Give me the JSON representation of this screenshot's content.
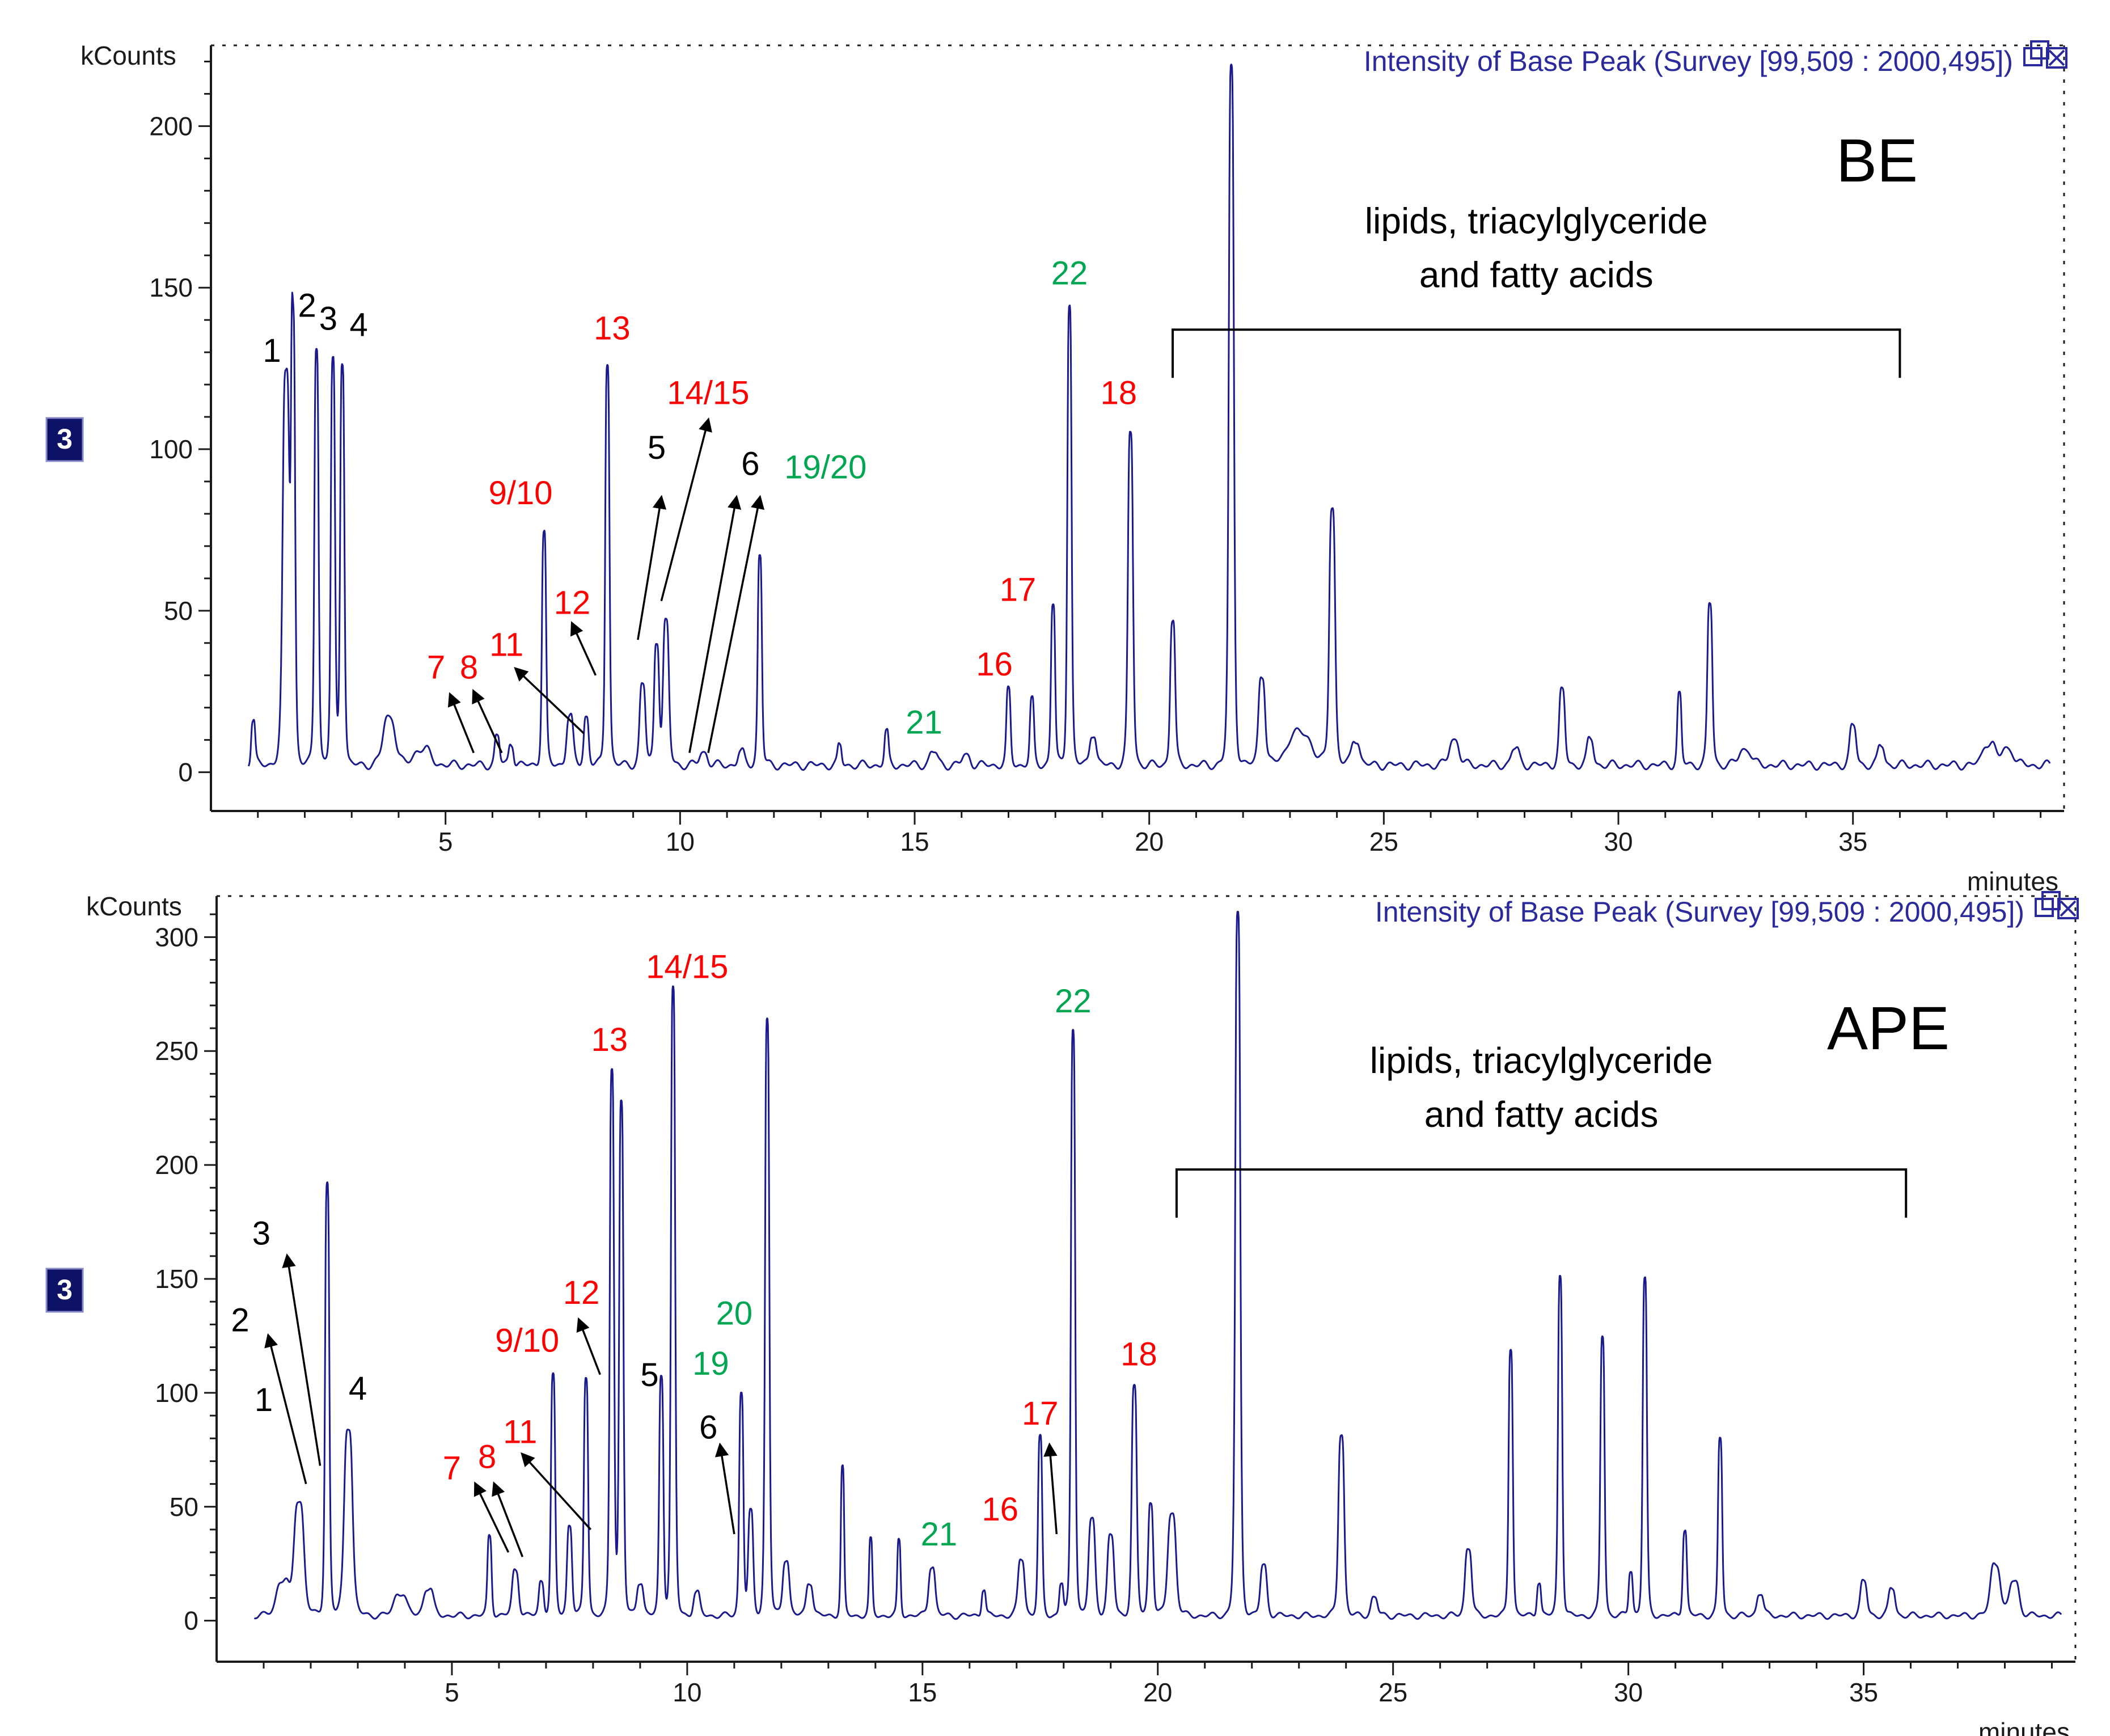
{
  "colors": {
    "trace": "#1a1a8c",
    "axis": "#1a1a1a",
    "header": "#2a2a9c",
    "red": "#ff0000",
    "green": "#00a651",
    "black": "#000000",
    "badge_bg": "#0d1266"
  },
  "chart_data": [
    {
      "type": "line",
      "panel": "BE",
      "title": "Intensity of Base Peak (Survey [99,509 : 2000,495])",
      "ylabel": "kCounts",
      "xlabel": "minutes",
      "badge": "3",
      "sample_label": "BE",
      "xlim": [
        0,
        39.5
      ],
      "ylim": [
        -12,
        225
      ],
      "xticks": [
        5,
        10,
        15,
        20,
        25,
        30,
        35
      ],
      "xtick_labels": [
        "5",
        "10",
        "15",
        "20",
        "25",
        "30",
        "35"
      ],
      "yticks": [
        0,
        50,
        100,
        150,
        200
      ],
      "ytick_labels": [
        "0",
        "50",
        "100",
        "150",
        "200"
      ],
      "baseline": 1,
      "range": [
        0.8,
        39.2
      ],
      "peaks": [
        [
          0.9,
          14,
          0.05
        ],
        [
          1.6,
          120,
          0.08
        ],
        [
          1.75,
          135,
          0.05
        ],
        [
          2.25,
          130,
          0.05
        ],
        [
          2.6,
          125,
          0.05
        ],
        [
          2.8,
          125,
          0.05
        ],
        [
          3.8,
          15,
          0.15
        ],
        [
          4.5,
          5,
          0.2
        ],
        [
          6.1,
          9,
          0.06
        ],
        [
          6.4,
          7,
          0.06
        ],
        [
          7.1,
          72,
          0.05
        ],
        [
          7.65,
          15,
          0.08
        ],
        [
          8.0,
          15,
          0.06
        ],
        [
          8.45,
          125,
          0.05
        ],
        [
          9.2,
          25,
          0.07
        ],
        [
          9.5,
          38,
          0.06
        ],
        [
          9.7,
          44,
          0.07
        ],
        [
          10.5,
          4,
          0.1
        ],
        [
          11.3,
          4,
          0.08
        ],
        [
          11.7,
          65,
          0.05
        ],
        [
          13.4,
          6,
          0.05
        ],
        [
          14.4,
          10,
          0.05
        ],
        [
          15.4,
          4,
          0.1
        ],
        [
          16.1,
          3,
          0.1
        ],
        [
          17.0,
          23,
          0.05
        ],
        [
          17.5,
          20,
          0.05
        ],
        [
          17.95,
          50,
          0.05
        ],
        [
          18.3,
          143,
          0.05
        ],
        [
          18.8,
          10,
          0.08
        ],
        [
          19.6,
          103,
          0.06
        ],
        [
          20.5,
          45,
          0.06
        ],
        [
          21.75,
          216,
          0.06
        ],
        [
          22.4,
          28,
          0.08
        ],
        [
          23.2,
          10,
          0.3
        ],
        [
          23.9,
          80,
          0.07
        ],
        [
          24.4,
          8,
          0.1
        ],
        [
          26.5,
          8,
          0.12
        ],
        [
          27.8,
          5,
          0.1
        ],
        [
          28.8,
          23,
          0.07
        ],
        [
          29.4,
          8,
          0.08
        ],
        [
          31.3,
          22,
          0.05
        ],
        [
          31.95,
          50,
          0.06
        ],
        [
          32.7,
          5,
          0.15
        ],
        [
          35.0,
          12,
          0.08
        ],
        [
          35.6,
          6,
          0.08
        ],
        [
          37.9,
          7,
          0.15
        ],
        [
          38.3,
          5,
          0.15
        ]
      ],
      "annotations": [
        {
          "text": "1",
          "x": 1.3,
          "y": 127,
          "color": "black"
        },
        {
          "text": "2",
          "x": 2.05,
          "y": 141,
          "color": "black"
        },
        {
          "text": "3",
          "x": 2.5,
          "y": 137,
          "color": "black"
        },
        {
          "text": "4",
          "x": 3.15,
          "y": 135,
          "color": "black"
        },
        {
          "text": "7",
          "x": 4.8,
          "y": 29,
          "color": "red"
        },
        {
          "text": "8",
          "x": 5.5,
          "y": 29,
          "color": "red"
        },
        {
          "text": "11",
          "x": 6.3,
          "y": 36,
          "color": "red"
        },
        {
          "text": "9/10",
          "x": 6.6,
          "y": 83,
          "color": "red"
        },
        {
          "text": "12",
          "x": 7.7,
          "y": 49,
          "color": "red"
        },
        {
          "text": "13",
          "x": 8.55,
          "y": 134,
          "color": "red"
        },
        {
          "text": "5",
          "x": 9.5,
          "y": 97,
          "color": "black"
        },
        {
          "text": "14/15",
          "x": 10.6,
          "y": 114,
          "color": "red"
        },
        {
          "text": "6",
          "x": 11.5,
          "y": 92,
          "color": "black"
        },
        {
          "text": "19/20",
          "x": 13.1,
          "y": 91,
          "color": "green"
        },
        {
          "text": "21",
          "x": 15.2,
          "y": 12,
          "color": "green"
        },
        {
          "text": "17",
          "x": 17.2,
          "y": 53,
          "color": "red"
        },
        {
          "text": "16",
          "x": 16.7,
          "y": 30,
          "color": "red"
        },
        {
          "text": "22",
          "x": 18.3,
          "y": 151,
          "color": "green"
        },
        {
          "text": "18",
          "x": 19.35,
          "y": 114,
          "color": "red"
        }
      ],
      "arrows": [
        {
          "from": [
            5.6,
            6
          ],
          "to": [
            5.1,
            24
          ]
        },
        {
          "from": [
            6.2,
            6
          ],
          "to": [
            5.6,
            25
          ]
        },
        {
          "from": [
            7.95,
            12
          ],
          "to": [
            6.5,
            32
          ]
        },
        {
          "from": [
            8.2,
            30
          ],
          "to": [
            7.7,
            46
          ]
        },
        {
          "from": [
            9.1,
            41
          ],
          "to": [
            9.6,
            85
          ]
        },
        {
          "from": [
            9.6,
            53
          ],
          "to": [
            10.6,
            109
          ]
        },
        {
          "from": [
            10.2,
            6
          ],
          "to": [
            11.2,
            85
          ]
        },
        {
          "from": [
            10.6,
            6
          ],
          "to": [
            11.7,
            85
          ]
        }
      ],
      "bracket": {
        "x1": 20.5,
        "x2": 36.0,
        "y": 137,
        "text_lines": [
          "lipids, triacylglyceride",
          "and fatty acids"
        ]
      }
    },
    {
      "type": "line",
      "panel": "APE",
      "title": "Intensity of Base Peak (Survey [99,509 : 2000,495])",
      "ylabel": "kCounts",
      "xlabel": "minutes",
      "badge": "3",
      "sample_label": "APE",
      "xlim": [
        0,
        39.5
      ],
      "ylim": [
        -18,
        318
      ],
      "xticks": [
        5,
        10,
        15,
        20,
        25,
        30,
        35
      ],
      "xtick_labels": [
        "5",
        "10",
        "15",
        "20",
        "25",
        "30",
        "35"
      ],
      "yticks": [
        0,
        50,
        100,
        150,
        200,
        250,
        300
      ],
      "ytick_labels": [
        "0",
        "50",
        "100",
        "150",
        "200",
        "250",
        "300"
      ],
      "baseline": 1,
      "range": [
        0.8,
        39.2
      ],
      "peaks": [
        [
          1.4,
          15,
          0.15
        ],
        [
          1.75,
          50,
          0.12
        ],
        [
          2.35,
          190,
          0.05
        ],
        [
          2.8,
          83,
          0.1
        ],
        [
          3.9,
          10,
          0.15
        ],
        [
          4.5,
          12,
          0.12
        ],
        [
          5.8,
          35,
          0.05
        ],
        [
          6.35,
          20,
          0.08
        ],
        [
          6.9,
          15,
          0.06
        ],
        [
          7.15,
          105,
          0.05
        ],
        [
          7.5,
          40,
          0.06
        ],
        [
          7.85,
          105,
          0.05
        ],
        [
          8.4,
          240,
          0.05
        ],
        [
          8.6,
          225,
          0.05
        ],
        [
          9.0,
          15,
          0.08
        ],
        [
          9.45,
          105,
          0.05
        ],
        [
          9.7,
          275,
          0.05
        ],
        [
          10.2,
          10,
          0.08
        ],
        [
          11.15,
          98,
          0.05
        ],
        [
          11.35,
          45,
          0.06
        ],
        [
          11.7,
          262,
          0.05
        ],
        [
          12.1,
          25,
          0.08
        ],
        [
          12.6,
          15,
          0.08
        ],
        [
          13.3,
          65,
          0.04
        ],
        [
          13.9,
          33,
          0.04
        ],
        [
          14.5,
          33,
          0.04
        ],
        [
          15.2,
          22,
          0.08
        ],
        [
          16.3,
          12,
          0.05
        ],
        [
          17.1,
          25,
          0.08
        ],
        [
          17.5,
          78,
          0.05
        ],
        [
          17.95,
          14,
          0.05
        ],
        [
          18.2,
          258,
          0.05
        ],
        [
          18.6,
          42,
          0.08
        ],
        [
          19.0,
          35,
          0.08
        ],
        [
          19.5,
          100,
          0.06
        ],
        [
          19.85,
          50,
          0.06
        ],
        [
          20.3,
          45,
          0.1
        ],
        [
          21.7,
          308,
          0.06
        ],
        [
          22.25,
          22,
          0.08
        ],
        [
          23.9,
          80,
          0.07
        ],
        [
          24.6,
          8,
          0.08
        ],
        [
          26.6,
          30,
          0.08
        ],
        [
          27.5,
          118,
          0.05
        ],
        [
          28.1,
          15,
          0.05
        ],
        [
          28.55,
          150,
          0.05
        ],
        [
          29.45,
          123,
          0.05
        ],
        [
          30.05,
          20,
          0.05
        ],
        [
          30.35,
          148,
          0.05
        ],
        [
          31.2,
          38,
          0.05
        ],
        [
          31.95,
          78,
          0.05
        ],
        [
          32.8,
          10,
          0.08
        ],
        [
          35.0,
          15,
          0.08
        ],
        [
          35.6,
          12,
          0.08
        ],
        [
          37.8,
          23,
          0.12
        ],
        [
          38.2,
          15,
          0.12
        ]
      ],
      "annotations": [
        {
          "text": "1",
          "x": 1.0,
          "y": 92,
          "color": "black"
        },
        {
          "text": "2",
          "x": 0.5,
          "y": 127,
          "color": "black"
        },
        {
          "text": "3",
          "x": 0.95,
          "y": 165,
          "color": "black"
        },
        {
          "text": "4",
          "x": 3.0,
          "y": 97,
          "color": "black"
        },
        {
          "text": "7",
          "x": 5.0,
          "y": 62,
          "color": "red"
        },
        {
          "text": "8",
          "x": 5.75,
          "y": 67,
          "color": "red"
        },
        {
          "text": "11",
          "x": 6.45,
          "y": 78,
          "color": "red"
        },
        {
          "text": "9/10",
          "x": 6.6,
          "y": 118,
          "color": "red"
        },
        {
          "text": "12",
          "x": 7.75,
          "y": 139,
          "color": "red"
        },
        {
          "text": "13",
          "x": 8.35,
          "y": 250,
          "color": "red"
        },
        {
          "text": "5",
          "x": 9.2,
          "y": 103,
          "color": "black"
        },
        {
          "text": "14/15",
          "x": 10.0,
          "y": 282,
          "color": "red"
        },
        {
          "text": "19",
          "x": 10.5,
          "y": 108,
          "color": "green"
        },
        {
          "text": "20",
          "x": 11.0,
          "y": 130,
          "color": "green"
        },
        {
          "text": "6",
          "x": 10.45,
          "y": 80,
          "color": "black"
        },
        {
          "text": "21",
          "x": 15.35,
          "y": 33,
          "color": "green"
        },
        {
          "text": "16",
          "x": 16.65,
          "y": 44,
          "color": "red"
        },
        {
          "text": "17",
          "x": 17.5,
          "y": 86,
          "color": "red"
        },
        {
          "text": "22",
          "x": 18.2,
          "y": 267,
          "color": "green"
        },
        {
          "text": "18",
          "x": 19.6,
          "y": 112,
          "color": "red"
        }
      ],
      "arrows": [
        {
          "from": [
            1.9,
            60
          ],
          "to": [
            1.1,
            125
          ]
        },
        {
          "from": [
            2.2,
            68
          ],
          "to": [
            1.5,
            160
          ]
        },
        {
          "from": [
            6.2,
            30
          ],
          "to": [
            5.5,
            60
          ]
        },
        {
          "from": [
            6.5,
            28
          ],
          "to": [
            5.9,
            60
          ]
        },
        {
          "from": [
            7.95,
            40
          ],
          "to": [
            6.5,
            73
          ]
        },
        {
          "from": [
            8.15,
            108
          ],
          "to": [
            7.7,
            132
          ]
        },
        {
          "from": [
            11.0,
            38
          ],
          "to": [
            10.7,
            77
          ]
        },
        {
          "from": [
            17.85,
            38
          ],
          "to": [
            17.7,
            77
          ]
        }
      ],
      "bracket": {
        "x1": 20.4,
        "x2": 35.9,
        "y": 198,
        "text_lines": [
          "lipids, triacylglyceride",
          "and fatty acids"
        ]
      }
    }
  ]
}
